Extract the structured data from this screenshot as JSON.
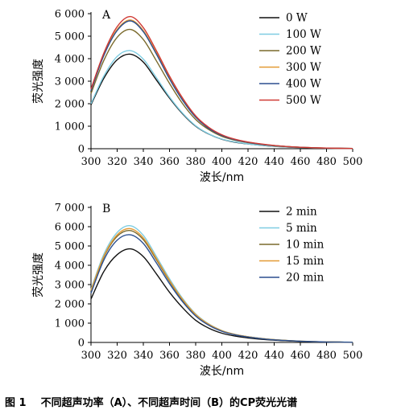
{
  "caption": {
    "figure_number": "图 1",
    "text": "不同超声功率（A）、不同超声时间（B）的CP荧光光谱"
  },
  "chart_data": [
    {
      "type": "line",
      "panel_label": "A",
      "xlabel": "波长/nm",
      "ylabel": "荧光强度",
      "xlim": [
        300,
        500
      ],
      "ylim": [
        0,
        6000
      ],
      "xticks": [
        300,
        320,
        340,
        360,
        380,
        400,
        420,
        440,
        460,
        480,
        500
      ],
      "yticks": [
        0,
        1000,
        2000,
        3000,
        4000,
        5000,
        6000
      ],
      "ytick_labels": [
        "0",
        "1 000",
        "2 000",
        "3 000",
        "4 000",
        "5 000",
        "6 000"
      ],
      "legend_position": "top-right",
      "grid": false,
      "x": [
        300,
        310,
        320,
        330,
        340,
        350,
        360,
        370,
        380,
        390,
        400,
        410,
        420,
        430,
        440,
        450,
        460,
        470,
        480,
        490,
        500
      ],
      "series": [
        {
          "name": "0 W",
          "color": "#111111",
          "values": [
            1950,
            3150,
            3950,
            4200,
            3850,
            3050,
            2250,
            1550,
            1000,
            650,
            420,
            290,
            210,
            150,
            105,
            75,
            50,
            35,
            22,
            14,
            8
          ]
        },
        {
          "name": "100 W",
          "color": "#7fcde2",
          "values": [
            2000,
            3250,
            4100,
            4360,
            3980,
            3150,
            2300,
            1580,
            1020,
            660,
            430,
            300,
            215,
            155,
            108,
            77,
            52,
            36,
            23,
            15,
            9
          ]
        },
        {
          "name": "200 W",
          "color": "#7a6a2c",
          "values": [
            2450,
            3950,
            4950,
            5300,
            4850,
            3900,
            2900,
            2000,
            1300,
            850,
            550,
            380,
            270,
            190,
            130,
            90,
            60,
            40,
            26,
            16,
            10
          ]
        },
        {
          "name": "300 W",
          "color": "#e39a35",
          "values": [
            2600,
            4200,
            5300,
            5720,
            5250,
            4250,
            3150,
            2200,
            1420,
            920,
            600,
            410,
            290,
            205,
            140,
            96,
            64,
            43,
            28,
            18,
            11
          ]
        },
        {
          "name": "400 W",
          "color": "#2b4f8f",
          "values": [
            2580,
            4170,
            5250,
            5680,
            5200,
            4200,
            3100,
            2150,
            1400,
            900,
            590,
            400,
            285,
            200,
            138,
            94,
            63,
            42,
            27,
            17,
            10
          ]
        },
        {
          "name": "500 W",
          "color": "#d03a34",
          "values": [
            2650,
            4280,
            5420,
            5870,
            5380,
            4350,
            3230,
            2250,
            1460,
            950,
            620,
            420,
            298,
            210,
            145,
            98,
            66,
            44,
            28,
            18,
            11
          ]
        }
      ]
    },
    {
      "type": "line",
      "panel_label": "B",
      "xlabel": "波长/nm",
      "ylabel": "荧光强度",
      "xlim": [
        300,
        500
      ],
      "ylim": [
        0,
        7000
      ],
      "xticks": [
        300,
        320,
        340,
        360,
        380,
        400,
        420,
        440,
        460,
        480,
        500
      ],
      "yticks": [
        0,
        1000,
        2000,
        3000,
        4000,
        5000,
        6000,
        7000
      ],
      "ytick_labels": [
        "0",
        "1 000",
        "2 000",
        "3 000",
        "4 000",
        "5 000",
        "6 000",
        "7 000"
      ],
      "legend_position": "top-right",
      "grid": false,
      "x": [
        300,
        310,
        320,
        330,
        340,
        350,
        360,
        370,
        380,
        390,
        400,
        410,
        420,
        430,
        440,
        450,
        460,
        470,
        480,
        490,
        500
      ],
      "series": [
        {
          "name": "2 min",
          "color": "#111111",
          "values": [
            2250,
            3700,
            4550,
            4850,
            4450,
            3550,
            2600,
            1800,
            1150,
            740,
            480,
            330,
            235,
            165,
            115,
            80,
            55,
            37,
            24,
            15,
            9
          ]
        },
        {
          "name": "5 min",
          "color": "#7fcde2",
          "values": [
            2750,
            4600,
            5700,
            6050,
            5550,
            4450,
            3300,
            2280,
            1480,
            960,
            620,
            420,
            300,
            210,
            145,
            100,
            68,
            45,
            29,
            18,
            11
          ]
        },
        {
          "name": "10 min",
          "color": "#7a6a2c",
          "values": [
            2650,
            4450,
            5500,
            5800,
            5330,
            4280,
            3170,
            2190,
            1420,
            920,
            600,
            405,
            290,
            203,
            140,
            97,
            65,
            44,
            28,
            17,
            10
          ]
        },
        {
          "name": "15 min",
          "color": "#e39a35",
          "values": [
            2700,
            4500,
            5580,
            5900,
            5420,
            4350,
            3220,
            2230,
            1450,
            940,
            610,
            412,
            294,
            206,
            142,
            98,
            66,
            44,
            28,
            17,
            10
          ]
        },
        {
          "name": "20 min",
          "color": "#2b4f8f",
          "values": [
            2550,
            4300,
            5300,
            5580,
            5130,
            4120,
            3050,
            2110,
            1370,
            890,
            580,
            392,
            280,
            196,
            135,
            94,
            63,
            42,
            27,
            16,
            10
          ]
        }
      ]
    }
  ]
}
